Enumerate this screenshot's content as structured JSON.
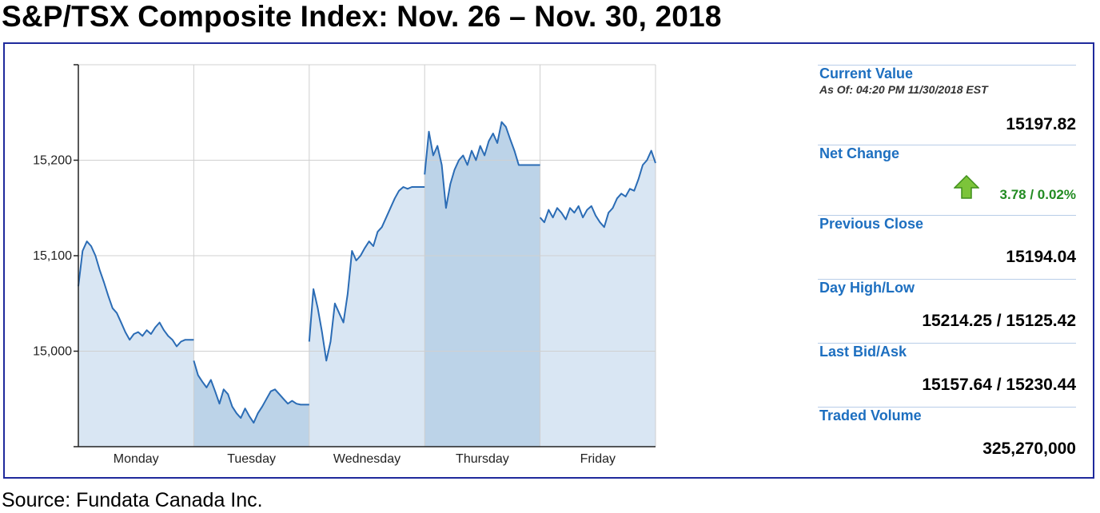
{
  "page": {
    "title": "S&P/TSX Composite Index: Nov. 26 – Nov. 30, 2018",
    "source": "Source: Fundata Canada Inc."
  },
  "colors": {
    "line": "#2b6cb5",
    "area_light": "#d9e6f3",
    "area_dark": "#bcd3e8",
    "frame": "#1f2a9c",
    "label_blue": "#1d6fc0",
    "change_green": "#228b22"
  },
  "info": {
    "current_value_label": "Current Value",
    "as_of": "As Of: 04:20 PM 11/30/2018 EST",
    "current_value": "15197.82",
    "net_change_label": "Net Change",
    "net_change": "3.78 / 0.02%",
    "net_change_icon": "up-arrow-icon",
    "previous_close_label": "Previous Close",
    "previous_close": "15194.04",
    "day_high_low_label": "Day High/Low",
    "day_high_low": "15214.25 / 15125.42",
    "last_bid_ask_label": "Last Bid/Ask",
    "last_bid_ask": "15157.64 / 15230.44",
    "traded_volume_label": "Traded Volume",
    "traded_volume": "325,270,000"
  },
  "chart_data": {
    "type": "area",
    "categories": [
      "Monday",
      "Tuesday",
      "Wednesday",
      "Thursday",
      "Friday"
    ],
    "y_ticks": [
      15000,
      15100,
      15200
    ],
    "y_tick_labels": [
      "15,000",
      "15,100",
      "15,200"
    ],
    "ylim": [
      14900,
      15300
    ],
    "grid": true,
    "shaded_days": [
      "Tuesday",
      "Thursday"
    ],
    "series": [
      {
        "days": [
          {
            "day": "Monday",
            "values": [
              15068,
              15105,
              15115,
              15110,
              15100,
              15085,
              15072,
              15058,
              15045,
              15040,
              15030,
              15020,
              15012,
              15018,
              15020,
              15016,
              15022,
              15018,
              15025,
              15030,
              15022,
              15016,
              15012,
              15005,
              15010,
              15012,
              15012,
              15012
            ]
          },
          {
            "day": "Tuesday",
            "values": [
              14990,
              14975,
              14968,
              14962,
              14970,
              14958,
              14945,
              14960,
              14955,
              14942,
              14935,
              14930,
              14940,
              14932,
              14925,
              14935,
              14942,
              14950,
              14958,
              14960,
              14955,
              14950,
              14945,
              14948,
              14945,
              14944,
              14944,
              14944
            ]
          },
          {
            "day": "Wednesday",
            "values": [
              15010,
              15065,
              15045,
              15020,
              14990,
              15010,
              15050,
              15040,
              15030,
              15060,
              15105,
              15095,
              15100,
              15108,
              15115,
              15110,
              15125,
              15130,
              15140,
              15150,
              15160,
              15168,
              15172,
              15170,
              15172,
              15172,
              15172,
              15172
            ]
          },
          {
            "day": "Thursday",
            "values": [
              15185,
              15230,
              15205,
              15215,
              15195,
              15150,
              15175,
              15190,
              15200,
              15205,
              15195,
              15210,
              15200,
              15215,
              15205,
              15220,
              15228,
              15218,
              15240,
              15235,
              15222,
              15210,
              15195,
              15195,
              15195,
              15195,
              15195,
              15195
            ]
          },
          {
            "day": "Friday",
            "values": [
              15140,
              15135,
              15148,
              15140,
              15150,
              15145,
              15138,
              15150,
              15145,
              15152,
              15140,
              15148,
              15152,
              15142,
              15135,
              15130,
              15145,
              15150,
              15160,
              15165,
              15162,
              15170,
              15168,
              15180,
              15195,
              15200,
              15210,
              15197
            ]
          }
        ]
      }
    ]
  }
}
